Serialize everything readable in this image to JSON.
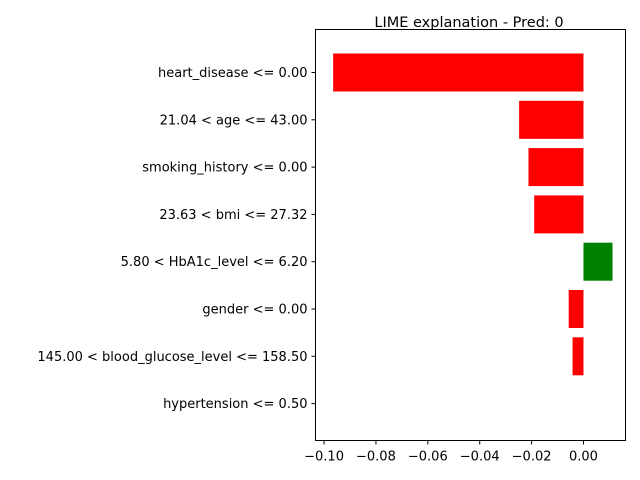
{
  "chart_data": {
    "type": "bar",
    "orientation": "horizontal",
    "title": "LIME explanation - Pred: 0",
    "xlabel": "",
    "ylabel": "",
    "xlim": [
      -0.1033,
      0.0162
    ],
    "xticks": [
      -0.1,
      -0.08,
      -0.06,
      -0.04,
      -0.02,
      0.0
    ],
    "xtick_labels": [
      "−0.10",
      "−0.08",
      "−0.06",
      "−0.04",
      "−0.02",
      "0.00"
    ],
    "grid": false,
    "categories": [
      "heart_disease <= 0.00",
      "21.04 < age <= 43.00",
      "smoking_history <= 0.00",
      "23.63 < bmi <= 27.32",
      "5.80 < HbA1c_level <= 6.20",
      "gender <= 0.00",
      "145.00 < blood_glucose_level <= 158.50",
      "hypertension <= 0.50"
    ],
    "values": [
      -0.0965,
      -0.0248,
      -0.0212,
      -0.019,
      0.0112,
      -0.0057,
      -0.0042,
      0.0
    ],
    "colors": {
      "negative": "#ff0000",
      "positive": "#008000",
      "axis": "#000000"
    }
  }
}
